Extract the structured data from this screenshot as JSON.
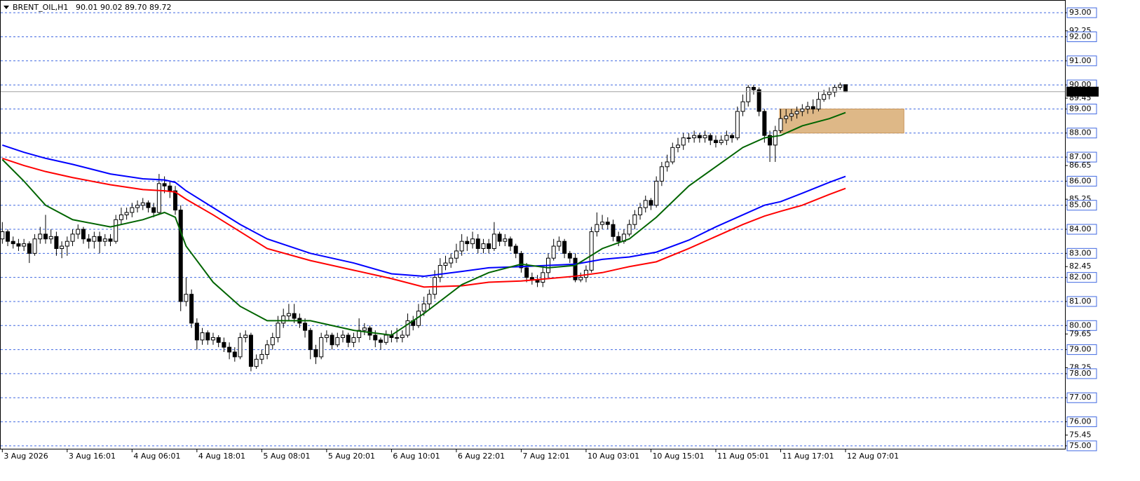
{
  "chart_data": {
    "type": "candlestick",
    "title": "BRENT_OIL,H1",
    "ohlc": "90.01 90.02 89.70 89.72",
    "xlim": [
      -0.3,
      196.6
    ],
    "ylim": [
      74.88,
      93.5
    ],
    "grid": true,
    "up_color": "#ffffff",
    "down_color": "#000000",
    "yticks": [
      {
        "value": 93,
        "label": "93.00"
      },
      {
        "value": 92.25,
        "label": "92.25"
      },
      {
        "value": 92,
        "label": "92.00"
      },
      {
        "value": 91,
        "label": "91.00"
      },
      {
        "value": 90,
        "label": "90.00"
      },
      {
        "value": 89.45,
        "label": "89.45"
      },
      {
        "value": 89,
        "label": "89.00"
      },
      {
        "value": 88,
        "label": "88.00"
      },
      {
        "value": 87,
        "label": "87.00"
      },
      {
        "value": 86.65,
        "label": "86.65"
      },
      {
        "value": 86,
        "label": "86.00"
      },
      {
        "value": 85.25,
        "label": "85.25"
      },
      {
        "value": 85,
        "label": "85.00"
      },
      {
        "value": 84,
        "label": "84.00"
      },
      {
        "value": 83,
        "label": "83.00"
      },
      {
        "value": 82.45,
        "label": "82.45"
      },
      {
        "value": 82,
        "label": "82.00"
      },
      {
        "value": 81,
        "label": "81.00"
      },
      {
        "value": 80,
        "label": "80.00"
      },
      {
        "value": 79.65,
        "label": "79.65"
      },
      {
        "value": 79,
        "label": "79.00"
      },
      {
        "value": 78.25,
        "label": "78.25"
      },
      {
        "value": 78,
        "label": "78.00"
      },
      {
        "value": 77,
        "label": "77.00"
      },
      {
        "value": 76,
        "label": "76.00"
      },
      {
        "value": 75.45,
        "label": "75.45"
      },
      {
        "value": 75,
        "label": "75.00"
      }
    ],
    "xticks": [
      {
        "value": 0,
        "label": "3 Aug 2026"
      },
      {
        "value": 12,
        "label": "3 Aug 16:01"
      },
      {
        "value": 24,
        "label": "4 Aug 06:01"
      },
      {
        "value": 36,
        "label": "4 Aug 18:01"
      },
      {
        "value": 48,
        "label": "5 Aug 08:01"
      },
      {
        "value": 60,
        "label": "5 Aug 20:01"
      },
      {
        "value": 72,
        "label": "6 Aug 10:01"
      },
      {
        "value": 84,
        "label": "6 Aug 22:01"
      },
      {
        "value": 96,
        "label": "7 Aug 12:01"
      },
      {
        "value": 108,
        "label": "10 Aug 03:01"
      },
      {
        "value": 120,
        "label": "10 Aug 15:01"
      },
      {
        "value": 132,
        "label": "11 Aug 05:01"
      },
      {
        "value": 144,
        "label": "11 Aug 17:01"
      },
      {
        "value": 156,
        "label": "12 Aug 07:01"
      }
    ],
    "last_price": 89.72,
    "zone": {
      "x": [
        143.8,
        166.8
      ],
      "y": [
        88,
        89
      ],
      "color": "#deb887"
    },
    "candles": [
      [
        83.6,
        84.3,
        83.4,
        83.9
      ],
      [
        83.9,
        84.0,
        83.3,
        83.5
      ],
      [
        83.5,
        83.7,
        83.2,
        83.4
      ],
      [
        83.4,
        83.6,
        83.1,
        83.3
      ],
      [
        83.3,
        83.6,
        83.1,
        83.4
      ],
      [
        83.4,
        83.5,
        82.6,
        83.0
      ],
      [
        83.0,
        83.8,
        82.9,
        83.6
      ],
      [
        83.6,
        84.1,
        83.4,
        83.8
      ],
      [
        83.8,
        84.6,
        83.4,
        83.6
      ],
      [
        83.6,
        84.0,
        83.4,
        83.7
      ],
      [
        83.7,
        83.9,
        82.9,
        83.2
      ],
      [
        83.2,
        83.5,
        82.8,
        83.3
      ],
      [
        83.3,
        83.7,
        82.9,
        83.5
      ],
      [
        83.5,
        84.0,
        83.3,
        83.8
      ],
      [
        83.8,
        84.2,
        83.6,
        84.0
      ],
      [
        84.0,
        84.1,
        83.4,
        83.6
      ],
      [
        83.6,
        83.8,
        83.2,
        83.5
      ],
      [
        83.5,
        83.9,
        83.2,
        83.7
      ],
      [
        83.7,
        83.9,
        83.0,
        83.5
      ],
      [
        83.5,
        83.8,
        83.3,
        83.6
      ],
      [
        83.6,
        83.8,
        83.3,
        83.5
      ],
      [
        83.5,
        84.6,
        83.4,
        84.4
      ],
      [
        84.4,
        84.9,
        84.2,
        84.6
      ],
      [
        84.6,
        84.9,
        84.4,
        84.7
      ],
      [
        84.7,
        85.1,
        84.5,
        84.9
      ],
      [
        84.9,
        85.2,
        84.7,
        85.0
      ],
      [
        85.0,
        85.3,
        84.8,
        85.1
      ],
      [
        85.1,
        85.2,
        84.7,
        84.9
      ],
      [
        84.9,
        85.1,
        84.5,
        84.7
      ],
      [
        84.7,
        86.3,
        84.6,
        85.9
      ],
      [
        85.9,
        86.2,
        85.5,
        85.8
      ],
      [
        85.8,
        86.0,
        85.3,
        85.6
      ],
      [
        85.6,
        85.8,
        84.6,
        84.8
      ],
      [
        84.8,
        85.0,
        80.6,
        81.0
      ],
      [
        81.0,
        82.0,
        80.8,
        81.3
      ],
      [
        81.3,
        81.5,
        79.9,
        80.1
      ],
      [
        80.1,
        80.3,
        79.0,
        79.4
      ],
      [
        79.4,
        79.9,
        79.2,
        79.7
      ],
      [
        79.7,
        79.8,
        79.2,
        79.4
      ],
      [
        79.4,
        79.7,
        79.2,
        79.5
      ],
      [
        79.5,
        79.6,
        79.1,
        79.3
      ],
      [
        79.3,
        79.5,
        78.9,
        79.1
      ],
      [
        79.1,
        79.3,
        78.6,
        78.9
      ],
      [
        78.9,
        79.1,
        78.5,
        78.7
      ],
      [
        78.7,
        79.7,
        78.6,
        79.5
      ],
      [
        79.5,
        79.8,
        79.3,
        79.6
      ],
      [
        79.6,
        79.7,
        78.1,
        78.3
      ],
      [
        78.3,
        78.8,
        78.2,
        78.6
      ],
      [
        78.6,
        79.0,
        78.4,
        78.8
      ],
      [
        78.8,
        79.4,
        78.6,
        79.2
      ],
      [
        79.2,
        79.7,
        79.0,
        79.5
      ],
      [
        79.5,
        80.4,
        79.3,
        80.1
      ],
      [
        80.1,
        80.7,
        79.9,
        80.4
      ],
      [
        80.4,
        80.9,
        80.2,
        80.5
      ],
      [
        80.5,
        80.9,
        80.1,
        80.3
      ],
      [
        80.3,
        80.5,
        79.9,
        80.1
      ],
      [
        80.1,
        80.3,
        79.5,
        79.8
      ],
      [
        79.8,
        79.9,
        78.6,
        79.0
      ],
      [
        79.0,
        79.2,
        78.4,
        78.7
      ],
      [
        78.7,
        79.7,
        78.6,
        79.5
      ],
      [
        79.5,
        79.8,
        79.3,
        79.6
      ],
      [
        79.6,
        79.7,
        79.0,
        79.2
      ],
      [
        79.2,
        79.7,
        79.1,
        79.5
      ],
      [
        79.5,
        79.8,
        79.3,
        79.6
      ],
      [
        79.6,
        79.7,
        79.1,
        79.3
      ],
      [
        79.3,
        79.7,
        79.1,
        79.5
      ],
      [
        79.5,
        80.3,
        79.3,
        79.8
      ],
      [
        79.8,
        80.1,
        79.6,
        79.9
      ],
      [
        79.9,
        80.0,
        79.4,
        79.6
      ],
      [
        79.6,
        79.8,
        79.1,
        79.4
      ],
      [
        79.4,
        79.5,
        79.0,
        79.3
      ],
      [
        79.3,
        79.8,
        79.2,
        79.6
      ],
      [
        79.6,
        79.8,
        79.3,
        79.5
      ],
      [
        79.5,
        79.9,
        79.3,
        79.5
      ],
      [
        79.5,
        79.8,
        79.3,
        79.6
      ],
      [
        79.6,
        80.5,
        79.5,
        80.2
      ],
      [
        80.2,
        80.4,
        79.8,
        80.0
      ],
      [
        80.0,
        80.9,
        79.9,
        80.6
      ],
      [
        80.6,
        81.2,
        80.4,
        80.9
      ],
      [
        80.9,
        81.5,
        80.7,
        81.3
      ],
      [
        81.3,
        82.3,
        81.1,
        82.0
      ],
      [
        82.0,
        82.8,
        81.8,
        82.5
      ],
      [
        82.5,
        82.9,
        82.3,
        82.6
      ],
      [
        82.6,
        83.0,
        82.4,
        82.8
      ],
      [
        82.8,
        83.4,
        82.6,
        83.1
      ],
      [
        83.1,
        83.8,
        82.9,
        83.5
      ],
      [
        83.5,
        83.7,
        83.1,
        83.4
      ],
      [
        83.4,
        83.9,
        83.2,
        83.6
      ],
      [
        83.6,
        83.8,
        83.0,
        83.2
      ],
      [
        83.2,
        83.6,
        83.0,
        83.4
      ],
      [
        83.4,
        83.6,
        83.0,
        83.2
      ],
      [
        83.2,
        84.3,
        83.1,
        83.8
      ],
      [
        83.8,
        83.9,
        83.3,
        83.5
      ],
      [
        83.5,
        83.8,
        83.3,
        83.6
      ],
      [
        83.6,
        83.7,
        83.1,
        83.3
      ],
      [
        83.3,
        83.4,
        82.8,
        83.0
      ],
      [
        83.0,
        83.1,
        82.2,
        82.4
      ],
      [
        82.4,
        82.6,
        81.8,
        82.0
      ],
      [
        82.0,
        82.2,
        81.7,
        81.9
      ],
      [
        81.9,
        82.1,
        81.6,
        81.8
      ],
      [
        81.8,
        82.4,
        81.6,
        82.2
      ],
      [
        82.2,
        83.0,
        82.0,
        82.8
      ],
      [
        82.8,
        83.6,
        82.7,
        83.3
      ],
      [
        83.3,
        83.7,
        83.1,
        83.5
      ],
      [
        83.5,
        83.6,
        82.8,
        83.0
      ],
      [
        83.0,
        83.1,
        82.6,
        82.8
      ],
      [
        82.8,
        83.0,
        81.8,
        81.9
      ],
      [
        81.9,
        82.2,
        81.8,
        82.0
      ],
      [
        82.0,
        82.5,
        81.8,
        82.3
      ],
      [
        82.3,
        84.1,
        82.2,
        83.9
      ],
      [
        83.9,
        84.7,
        83.7,
        84.2
      ],
      [
        84.2,
        84.6,
        84.0,
        84.3
      ],
      [
        84.3,
        84.5,
        84.0,
        84.2
      ],
      [
        84.2,
        84.4,
        83.5,
        83.7
      ],
      [
        83.7,
        83.9,
        83.3,
        83.5
      ],
      [
        83.5,
        84.0,
        83.4,
        83.8
      ],
      [
        83.8,
        84.4,
        83.7,
        84.2
      ],
      [
        84.2,
        84.8,
        84.0,
        84.6
      ],
      [
        84.6,
        85.1,
        84.4,
        84.9
      ],
      [
        84.9,
        85.4,
        84.7,
        85.2
      ],
      [
        85.2,
        85.3,
        84.8,
        85.0
      ],
      [
        85.0,
        86.2,
        84.9,
        86.0
      ],
      [
        86.0,
        86.8,
        85.8,
        86.6
      ],
      [
        86.6,
        87.1,
        86.4,
        86.8
      ],
      [
        86.8,
        87.6,
        86.7,
        87.4
      ],
      [
        87.4,
        87.8,
        87.2,
        87.5
      ],
      [
        87.5,
        88.0,
        87.3,
        87.8
      ],
      [
        87.8,
        88.0,
        87.6,
        87.8
      ],
      [
        87.8,
        88.1,
        87.6,
        87.9
      ],
      [
        87.9,
        88.0,
        87.6,
        87.8
      ],
      [
        87.8,
        88.1,
        87.6,
        87.9
      ],
      [
        87.9,
        88.0,
        87.5,
        87.7
      ],
      [
        87.7,
        87.9,
        87.4,
        87.6
      ],
      [
        87.6,
        87.9,
        87.5,
        87.7
      ],
      [
        87.7,
        88.1,
        87.5,
        87.9
      ],
      [
        87.9,
        88.0,
        87.6,
        87.8
      ],
      [
        87.8,
        89.1,
        87.7,
        88.9
      ],
      [
        88.9,
        89.6,
        88.7,
        89.3
      ],
      [
        89.3,
        90.0,
        89.1,
        89.9
      ],
      [
        89.9,
        90.0,
        89.6,
        89.8
      ],
      [
        89.8,
        89.9,
        88.7,
        88.9
      ],
      [
        88.9,
        89.0,
        87.6,
        87.9
      ],
      [
        87.9,
        88.1,
        86.8,
        87.5
      ],
      [
        87.5,
        88.3,
        86.8,
        88.1
      ],
      [
        88.1,
        89.0,
        88.0,
        88.6
      ],
      [
        88.6,
        89.0,
        88.4,
        88.7
      ],
      [
        88.7,
        89.0,
        88.5,
        88.8
      ],
      [
        88.8,
        89.1,
        88.6,
        88.9
      ],
      [
        88.9,
        89.2,
        88.7,
        89.0
      ],
      [
        89.0,
        89.3,
        88.8,
        89.1
      ],
      [
        89.1,
        89.4,
        88.8,
        89.0
      ],
      [
        89.0,
        89.7,
        88.9,
        89.4
      ],
      [
        89.4,
        89.8,
        89.3,
        89.6
      ],
      [
        89.6,
        89.9,
        89.4,
        89.7
      ],
      [
        89.7,
        90.0,
        89.5,
        89.9
      ],
      [
        89.9,
        90.1,
        89.8,
        90.0
      ],
      [
        90.01,
        90.02,
        89.7,
        89.72
      ]
    ],
    "series_x": [
      0,
      4,
      8,
      13,
      20,
      26,
      30,
      32,
      34,
      39,
      44,
      49,
      57,
      65,
      72,
      78,
      85,
      90,
      96,
      101,
      106,
      111,
      116,
      121,
      127,
      132,
      137,
      141,
      144,
      148,
      153,
      156
    ],
    "series": [
      {
        "color": "#0000ff",
        "values": [
          87.5,
          87.2,
          86.95,
          86.7,
          86.3,
          86.1,
          86.05,
          85.95,
          85.6,
          84.9,
          84.2,
          83.6,
          83.0,
          82.6,
          82.15,
          82.05,
          82.25,
          82.4,
          82.45,
          82.5,
          82.55,
          82.75,
          82.85,
          83.05,
          83.55,
          84.1,
          84.6,
          85.0,
          85.15,
          85.5,
          85.95,
          86.2
        ]
      },
      {
        "color": "#ff0000",
        "values": [
          86.95,
          86.65,
          86.4,
          86.15,
          85.85,
          85.65,
          85.6,
          85.55,
          85.25,
          84.6,
          83.9,
          83.2,
          82.7,
          82.3,
          81.95,
          81.6,
          81.65,
          81.8,
          81.85,
          81.95,
          82.05,
          82.2,
          82.45,
          82.65,
          83.2,
          83.7,
          84.2,
          84.55,
          84.75,
          85.0,
          85.45,
          85.7
        ]
      },
      {
        "color": "#006400",
        "values": [
          86.9,
          86.0,
          85.0,
          84.4,
          84.1,
          84.4,
          84.7,
          84.5,
          83.3,
          81.8,
          80.8,
          80.2,
          80.2,
          79.8,
          79.6,
          80.5,
          81.7,
          82.2,
          82.55,
          82.4,
          82.5,
          83.2,
          83.6,
          84.5,
          85.8,
          86.6,
          87.4,
          87.8,
          87.9,
          88.3,
          88.6,
          88.85
        ]
      }
    ]
  }
}
